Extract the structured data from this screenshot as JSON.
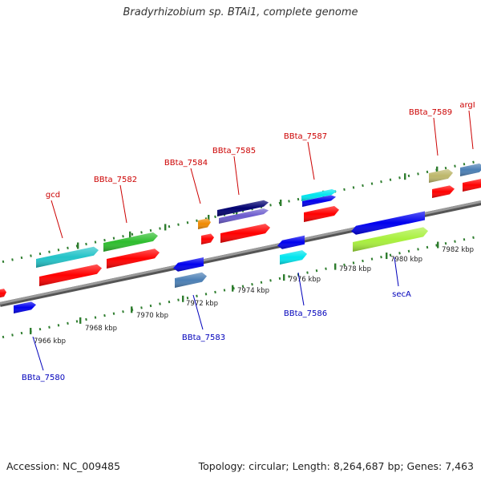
{
  "title": "Bradyrhizobium sp. BTAi1, complete genome",
  "footer": {
    "accession": "Accession: NC_009485",
    "summary": "Topology: circular; Length: 8,264,687 bp; Genes: 7,463"
  },
  "colors": {
    "forward_label": "#cc0000",
    "reverse_label": "#0000bb",
    "tick": "#2e7d2e",
    "backbone": "#888888"
  },
  "tick_labels": [
    "7966 kbp",
    "7968 kbp",
    "7970 kbp",
    "7972 kbp",
    "7974 kbp",
    "7976 kbp",
    "7978 kbp",
    "7980 kbp",
    "7982 kbp"
  ],
  "gene_labels": {
    "forward": [
      "gcd",
      "BBta_7582",
      "BBta_7584",
      "BBta_7585",
      "BBta_7587",
      "BBta_7589",
      "argI"
    ],
    "reverse": [
      "BBta_7580",
      "BBta_7583",
      "BBta_7586",
      "secA"
    ]
  },
  "features": [
    {
      "name": "f0",
      "color": "#ff0000",
      "strand": "rev-red"
    },
    {
      "name": "f1",
      "color": "#0000ee",
      "strand": "reverse"
    },
    {
      "name": "f2",
      "color": "#22c3c8",
      "strand": "forward-outer"
    },
    {
      "name": "f3",
      "color": "#ff0000",
      "strand": "forward-inner"
    },
    {
      "name": "f4",
      "color": "#2ebd2e",
      "strand": "forward-outer"
    },
    {
      "name": "f5",
      "color": "#ff0000",
      "strand": "forward-inner"
    },
    {
      "name": "f6",
      "color": "#0000ee",
      "strand": "reverse"
    },
    {
      "name": "f7",
      "color": "#4b7fb5",
      "strand": "reverse-outer"
    },
    {
      "name": "f8",
      "color": "#f08a00",
      "strand": "forward-outer"
    },
    {
      "name": "f9",
      "color": "#ff0000",
      "strand": "forward-inner"
    },
    {
      "name": "f10",
      "color": "#000070",
      "strand": "forward-outer"
    },
    {
      "name": "f11",
      "color": "#6a5acd",
      "strand": "forward-mid"
    },
    {
      "name": "f12",
      "color": "#ff0000",
      "strand": "forward-inner"
    },
    {
      "name": "f13",
      "color": "#0000ee",
      "strand": "reverse"
    },
    {
      "name": "f14",
      "color": "#00e5ee",
      "strand": "reverse-outer"
    },
    {
      "name": "f15",
      "color": "#00e5ee",
      "strand": "forward-outer"
    },
    {
      "name": "f16",
      "color": "#0000ee",
      "strand": "forward-mid"
    },
    {
      "name": "f17",
      "color": "#ff0000",
      "strand": "forward-inner"
    },
    {
      "name": "f18",
      "color": "#0000ee",
      "strand": "reverse"
    },
    {
      "name": "f19",
      "color": "#a8f03c",
      "strand": "reverse-outer"
    },
    {
      "name": "f20",
      "color": "#bdb76b",
      "strand": "forward-outer"
    },
    {
      "name": "f21",
      "color": "#ff0000",
      "strand": "forward-inner"
    },
    {
      "name": "f22",
      "color": "#4b7fb5",
      "strand": "forward-outer"
    },
    {
      "name": "f23",
      "color": "#ff0000",
      "strand": "forward-inner"
    }
  ]
}
